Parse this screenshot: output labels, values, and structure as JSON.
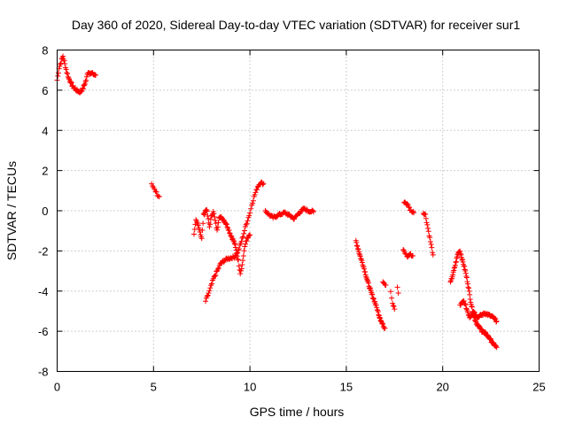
{
  "chart_data": {
    "type": "scatter",
    "title": "Day 360 of 2020, Sidereal Day-to-day VTEC variation (SDTVAR) for receiver sur1",
    "xlabel": "GPS time / hours",
    "ylabel": "SDTVAR / TECUs",
    "xlim": [
      0,
      25
    ],
    "ylim": [
      -8,
      8
    ],
    "xticks": [
      0,
      5,
      10,
      15,
      20,
      25
    ],
    "xtick_labels": [
      "0",
      "5",
      "10",
      "15",
      "20",
      "25"
    ],
    "yticks": [
      -8,
      -6,
      -4,
      -2,
      0,
      2,
      4,
      6,
      8
    ],
    "ytick_labels": [
      "-8",
      "-6",
      "-4",
      "-2",
      "0",
      "2",
      "4",
      "6",
      "8"
    ],
    "grid": true,
    "marker": "+",
    "series_color": "#ff0000",
    "segments": [
      {
        "points": [
          [
            0,
            6.5
          ],
          [
            0.1,
            7.1
          ],
          [
            0.2,
            7.4
          ],
          [
            0.3,
            7.7
          ],
          [
            0.4,
            7.3
          ],
          [
            0.5,
            6.9
          ],
          [
            0.6,
            6.6
          ],
          [
            0.8,
            6.2
          ],
          [
            1.0,
            6.0
          ],
          [
            1.2,
            5.9
          ],
          [
            1.35,
            6.1
          ],
          [
            1.5,
            6.5
          ],
          [
            1.6,
            6.9
          ],
          [
            1.75,
            6.85
          ],
          [
            2.0,
            6.75
          ]
        ],
        "step": 0.03
      },
      {
        "points": [
          [
            4.9,
            1.3
          ],
          [
            5.05,
            1.1
          ],
          [
            5.2,
            0.8
          ],
          [
            5.3,
            0.7
          ]
        ],
        "step": 0.05
      },
      {
        "points": [
          [
            7.1,
            -1.2
          ],
          [
            7.2,
            -0.5
          ],
          [
            7.35,
            -0.8
          ],
          [
            7.5,
            -1.4
          ],
          [
            7.6,
            -0.2
          ],
          [
            7.75,
            0.1
          ],
          [
            7.9,
            -0.8
          ],
          [
            8.0,
            -0.3
          ],
          [
            8.1,
            0.0
          ],
          [
            8.2,
            -0.5
          ],
          [
            8.3,
            -1.0
          ],
          [
            8.4,
            -0.3
          ],
          [
            8.6,
            -0.4
          ],
          [
            8.8,
            -0.7
          ],
          [
            9.0,
            -1.2
          ],
          [
            9.2,
            -1.6
          ],
          [
            9.4,
            -2.5
          ],
          [
            9.5,
            -3.1
          ],
          [
            9.6,
            -2.7
          ],
          [
            9.7,
            -2.0
          ],
          [
            9.8,
            -1.5
          ],
          [
            10.0,
            -1.2
          ]
        ],
        "step": 0.03
      },
      {
        "points": [
          [
            7.7,
            -4.5
          ],
          [
            7.9,
            -4.0
          ],
          [
            8.1,
            -3.4
          ],
          [
            8.3,
            -3.0
          ],
          [
            8.5,
            -2.6
          ],
          [
            8.8,
            -2.4
          ],
          [
            9.0,
            -2.35
          ],
          [
            9.2,
            -2.3
          ],
          [
            9.4,
            -2.0
          ],
          [
            9.6,
            -1.4
          ],
          [
            9.8,
            -0.7
          ],
          [
            10.0,
            -0.1
          ],
          [
            10.1,
            0.3
          ],
          [
            10.25,
            0.8
          ],
          [
            10.4,
            1.2
          ],
          [
            10.55,
            1.4
          ],
          [
            10.7,
            1.35
          ]
        ],
        "step": 0.04
      },
      {
        "points": [
          [
            10.8,
            0.0
          ],
          [
            11.0,
            -0.2
          ],
          [
            11.2,
            -0.35
          ],
          [
            11.5,
            -0.2
          ],
          [
            11.8,
            -0.1
          ],
          [
            12.0,
            -0.2
          ],
          [
            12.3,
            -0.4
          ],
          [
            12.5,
            -0.15
          ],
          [
            12.8,
            0.1
          ],
          [
            13.0,
            0.0
          ],
          [
            13.3,
            -0.05
          ]
        ],
        "step": 0.04
      },
      {
        "points": [
          [
            15.5,
            -1.5
          ],
          [
            15.7,
            -2.2
          ],
          [
            15.9,
            -2.8
          ],
          [
            16.1,
            -3.5
          ],
          [
            16.3,
            -4.1
          ],
          [
            16.5,
            -4.6
          ],
          [
            16.7,
            -5.2
          ],
          [
            16.85,
            -5.6
          ],
          [
            17.0,
            -5.85
          ]
        ],
        "step": 0.025
      },
      {
        "points": [
          [
            16.9,
            -3.5
          ],
          [
            17.05,
            -3.7
          ]
        ],
        "step": 0.04
      },
      {
        "points": [
          [
            17.3,
            -4.0
          ],
          [
            17.4,
            -4.6
          ],
          [
            17.5,
            -4.9
          ]
        ],
        "step": 0.04
      },
      {
        "points": [
          [
            17.65,
            -3.8
          ],
          [
            17.7,
            -4.1
          ]
        ],
        "step": 0.05
      },
      {
        "points": [
          [
            18.0,
            0.4
          ],
          [
            18.1,
            0.35
          ],
          [
            18.2,
            0.3
          ],
          [
            18.3,
            0.05
          ],
          [
            18.4,
            -0.05
          ],
          [
            18.5,
            -0.1
          ]
        ],
        "step": 0.04
      },
      {
        "points": [
          [
            17.95,
            -1.9
          ],
          [
            18.05,
            -2.1
          ],
          [
            18.15,
            -2.3
          ],
          [
            18.3,
            -2.15
          ],
          [
            18.45,
            -2.25
          ]
        ],
        "step": 0.04
      },
      {
        "points": [
          [
            19.0,
            -0.1
          ],
          [
            19.1,
            -0.2
          ],
          [
            19.2,
            -0.7
          ],
          [
            19.3,
            -1.2
          ],
          [
            19.4,
            -1.7
          ],
          [
            19.5,
            -2.2
          ]
        ],
        "step": 0.03
      },
      {
        "points": [
          [
            20.4,
            -3.6
          ],
          [
            20.55,
            -3.1
          ],
          [
            20.7,
            -2.5
          ],
          [
            20.8,
            -2.1
          ],
          [
            20.9,
            -2.0
          ],
          [
            21.0,
            -2.4
          ],
          [
            21.15,
            -2.9
          ],
          [
            21.3,
            -3.6
          ],
          [
            21.45,
            -4.5
          ],
          [
            21.6,
            -5.2
          ],
          [
            21.75,
            -5.6
          ],
          [
            21.9,
            -5.8
          ],
          [
            22.05,
            -6.0
          ],
          [
            22.2,
            -6.1
          ],
          [
            22.4,
            -6.3
          ],
          [
            22.6,
            -6.6
          ],
          [
            22.8,
            -6.8
          ]
        ],
        "step": 0.025
      },
      {
        "points": [
          [
            20.9,
            -4.7
          ],
          [
            21.1,
            -4.5
          ],
          [
            21.25,
            -4.9
          ],
          [
            21.4,
            -5.3
          ],
          [
            21.6,
            -5.0
          ],
          [
            21.8,
            -5.3
          ],
          [
            22.0,
            -5.2
          ],
          [
            22.2,
            -5.1
          ],
          [
            22.4,
            -5.2
          ],
          [
            22.6,
            -5.3
          ],
          [
            22.8,
            -5.5
          ]
        ],
        "step": 0.03
      }
    ]
  }
}
